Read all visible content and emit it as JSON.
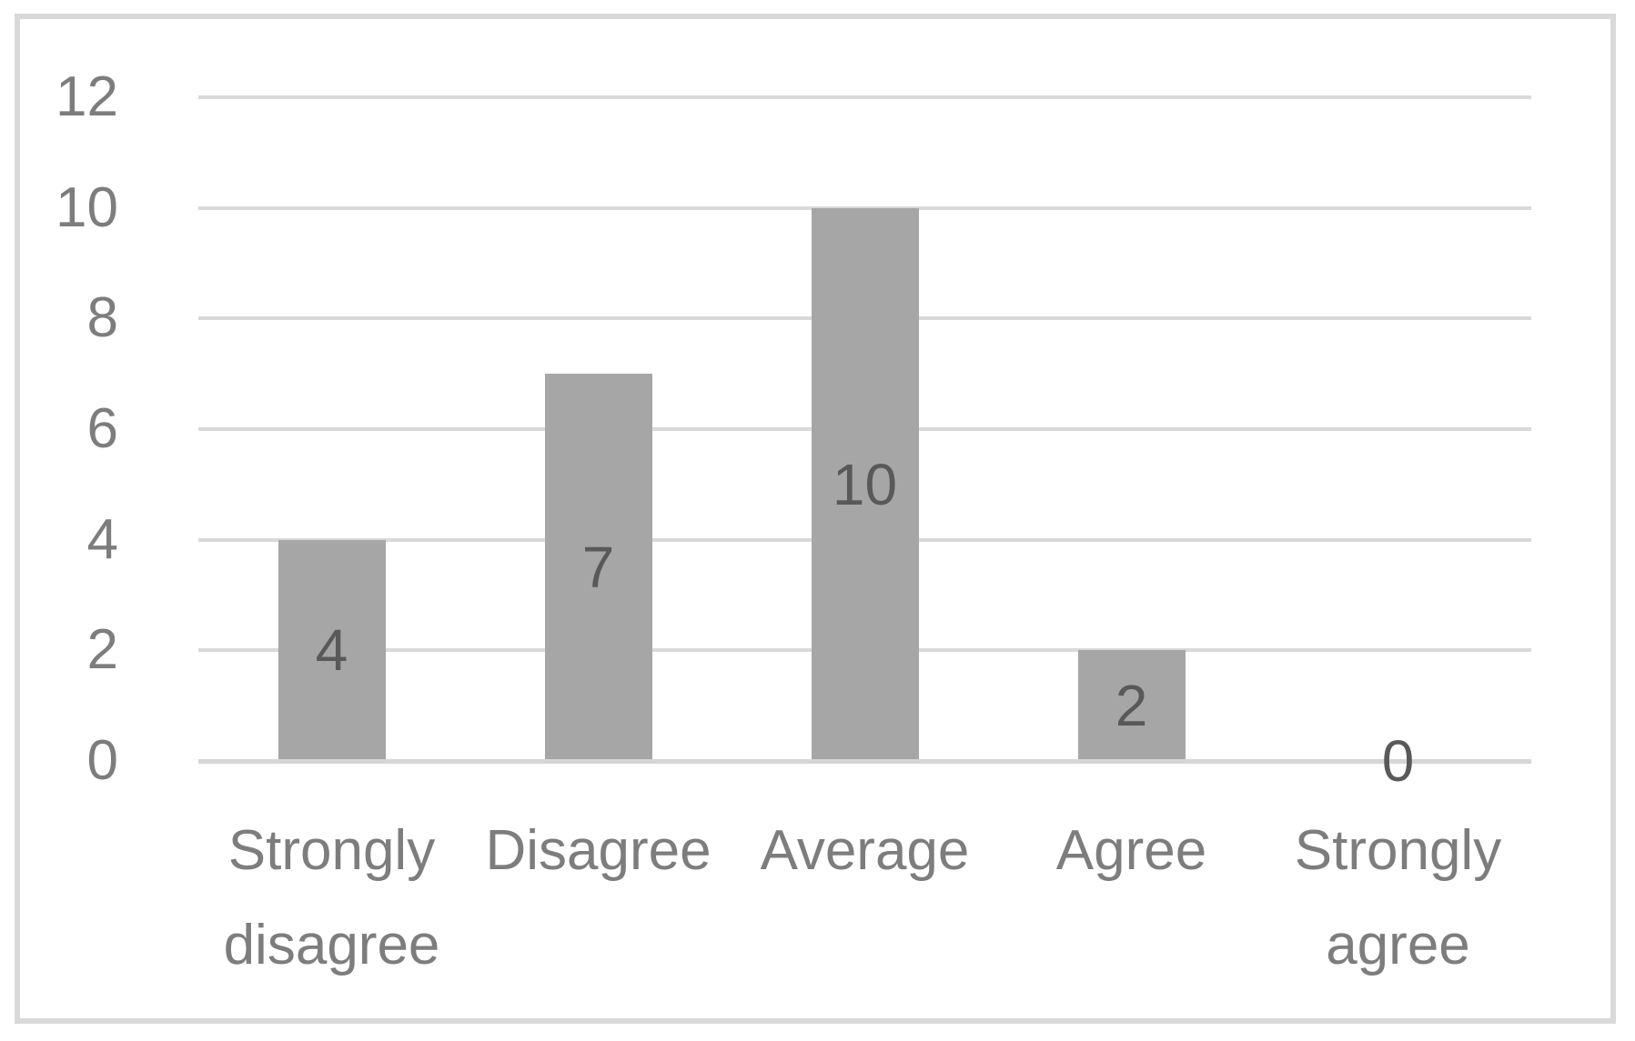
{
  "chart_data": {
    "type": "bar",
    "categories": [
      "Strongly disagree",
      "Disagree",
      "Average",
      "Agree",
      "Strongly agree"
    ],
    "values": [
      4,
      7,
      10,
      2,
      0
    ],
    "data_labels": [
      "4",
      "7",
      "10",
      "2",
      "0"
    ],
    "title": "",
    "xlabel": "",
    "ylabel": "",
    "ylim": [
      0,
      12
    ],
    "ytick_step": 2,
    "yticks": [
      0,
      2,
      4,
      6,
      8,
      10,
      12
    ],
    "grid": true,
    "legend_position": "none",
    "data_label_position": "center-in-bar",
    "colors": {
      "bar_fill": "#A6A6A6",
      "gridline": "#D9D9D9",
      "axis_line": "#D6D6D6",
      "frame_border": "#D9D9D9",
      "tick_label_text": "#7D7D7D",
      "data_label_text": "#595959",
      "background": "#FFFFFF"
    }
  }
}
